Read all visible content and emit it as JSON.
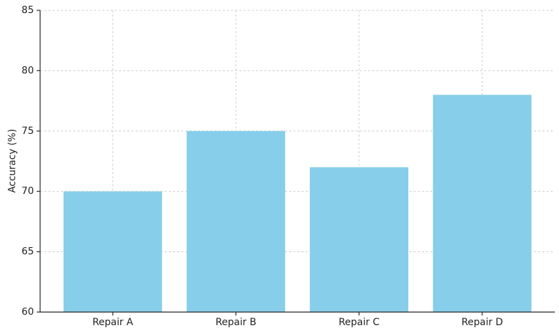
{
  "chart_data": {
    "type": "bar",
    "ylabel": "Accuracy (%)",
    "categories": [
      "Repair A",
      "Repair B",
      "Repair C",
      "Repair D"
    ],
    "values": [
      70,
      75,
      72,
      78
    ],
    "color": "#87ceeb",
    "ylim": [
      60,
      85
    ],
    "yticks": [
      60,
      65,
      70,
      75,
      80,
      85
    ],
    "grid": true
  }
}
